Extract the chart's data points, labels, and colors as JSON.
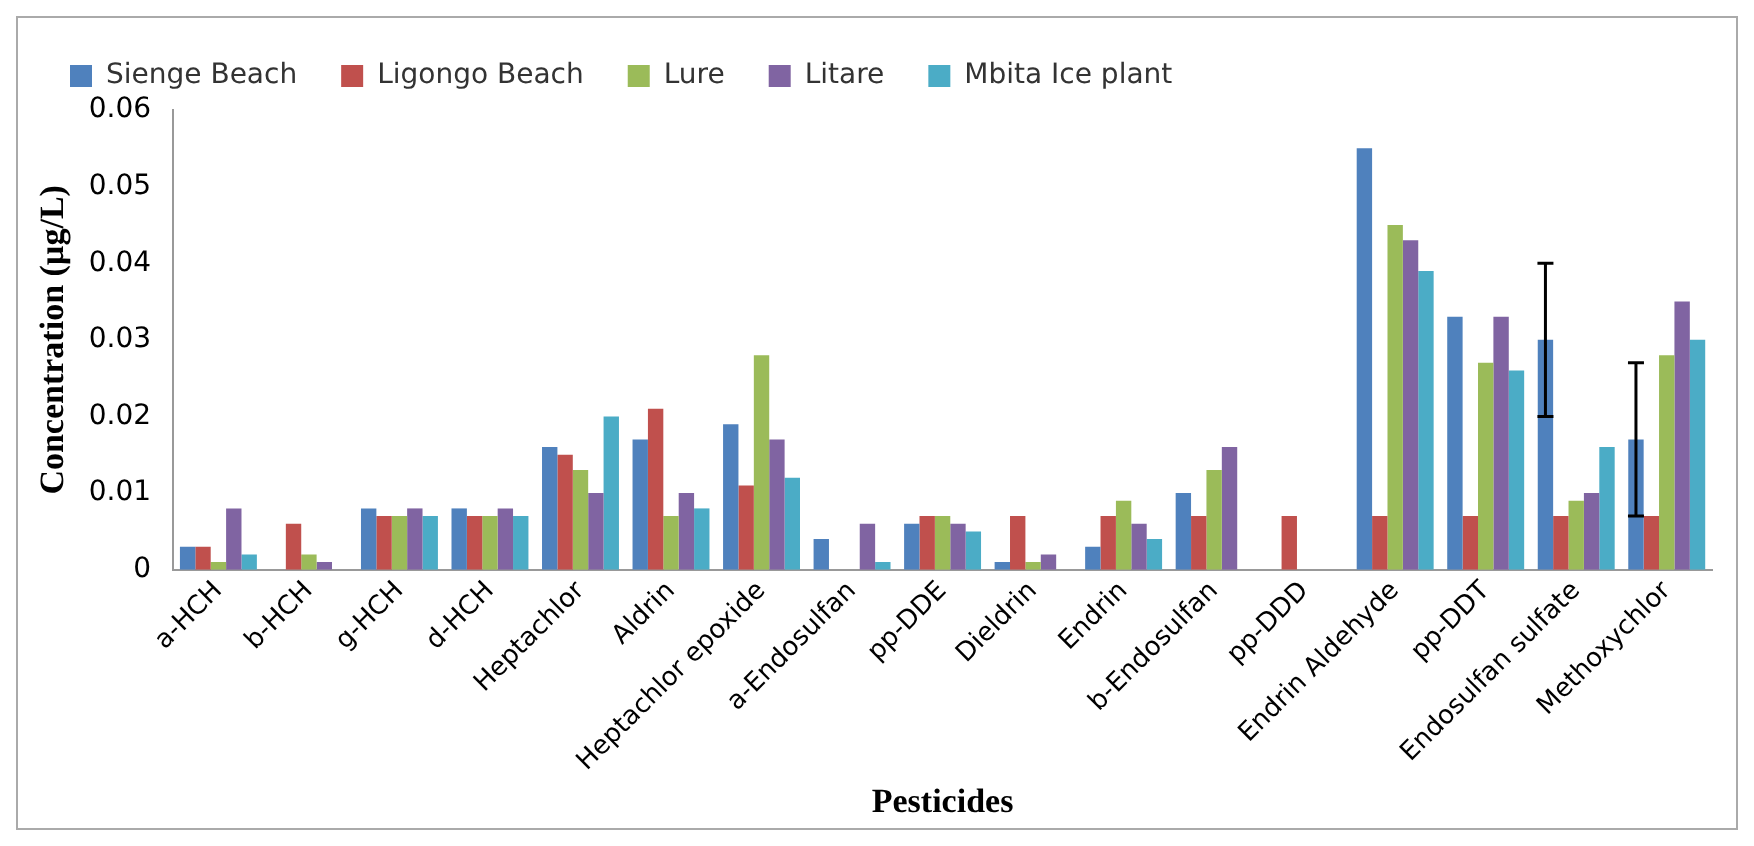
{
  "chart_data": {
    "type": "bar",
    "xlabel": "Pesticides",
    "ylabel": "Concentration (µg/L)",
    "categories": [
      "a-HCH",
      "b-HCH",
      "g-HCH",
      "d-HCH",
      "Heptachlor",
      "Aldrin",
      "Heptachlor epoxide",
      "a-Endosulfan",
      "pp-DDE",
      "Dieldrin",
      "Endrin",
      "b-Endosulfan",
      "pp-DDD",
      "Endrin Aldehyde",
      "pp-DDT",
      "Endosulfan sulfate",
      "Methoxychlor"
    ],
    "series": [
      {
        "name": "Sienge Beach",
        "color": "#4f81bd",
        "values": [
          0.003,
          0,
          0.008,
          0.008,
          0.016,
          0.017,
          0.019,
          0.004,
          0.006,
          0.001,
          0.003,
          0.01,
          0,
          0.055,
          0.033,
          0.03,
          0.017
        ],
        "errors": [
          null,
          null,
          null,
          null,
          null,
          null,
          null,
          null,
          null,
          null,
          null,
          null,
          null,
          null,
          null,
          0.01,
          0.01
        ]
      },
      {
        "name": "Ligongo Beach",
        "color": "#c0504d",
        "values": [
          0.003,
          0.006,
          0.007,
          0.007,
          0.015,
          0.021,
          0.011,
          0,
          0.007,
          0.007,
          0.007,
          0.007,
          0.007,
          0.007,
          0.007,
          0.007,
          0.007
        ]
      },
      {
        "name": "Lure",
        "color": "#9bbb59",
        "values": [
          0.001,
          0.002,
          0.007,
          0.007,
          0.013,
          0.007,
          0.028,
          0,
          0.007,
          0.001,
          0.009,
          0.013,
          0,
          0.045,
          0.027,
          0.009,
          0.028
        ]
      },
      {
        "name": "Litare",
        "color": "#8064a2",
        "values": [
          0.008,
          0.001,
          0.008,
          0.008,
          0.01,
          0.01,
          0.017,
          0.006,
          0.006,
          0.002,
          0.006,
          0.016,
          0,
          0.043,
          0.033,
          0.01,
          0.035
        ]
      },
      {
        "name": "Mbita Ice plant",
        "color": "#4bacc6",
        "values": [
          0.002,
          0,
          0.007,
          0.007,
          0.02,
          0.008,
          0.012,
          0.001,
          0.005,
          0,
          0.004,
          0,
          0,
          0.039,
          0.026,
          0.016,
          0.03
        ]
      }
    ],
    "ylim": [
      0,
      0.06
    ],
    "yticks": [
      0,
      0.01,
      0.02,
      0.03,
      0.04,
      0.05,
      0.06
    ],
    "grid": false,
    "legend": "top"
  }
}
